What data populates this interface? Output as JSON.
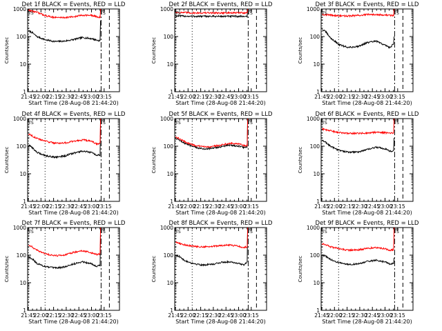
{
  "figure": {
    "colors": {
      "background": "#ffffff",
      "axes": "#000000",
      "events": "#000000",
      "lld": "#ff0000"
    }
  },
  "chart_data": [
    {
      "type": "line",
      "title": "Det 1f BLACK = Events, RED = LLD",
      "xlabel": "Start Time (28-Aug-08 21:44:20)",
      "ylabel": "Counts/sec",
      "xlim": [
        0,
        100
      ],
      "ylim": [
        1,
        1000
      ],
      "yscale": "log",
      "x_tick_labels": [
        "21:45",
        "22:00",
        "22:15",
        "22:30",
        "22:45",
        "23:00",
        "23:15"
      ],
      "y_tick_labels": [
        "1",
        "10",
        "100",
        "1000"
      ],
      "ts_marker": "TS",
      "vlines": [
        {
          "x": 1,
          "style": "dotted"
        },
        {
          "x": 19,
          "style": "dotted"
        },
        {
          "x": 80,
          "style": "dash-dot"
        },
        {
          "x": 89,
          "style": "dashed"
        }
      ],
      "series": [
        {
          "name": "Events",
          "color": "#000000",
          "x": [
            1,
            5,
            10,
            20,
            30,
            40,
            50,
            60,
            70,
            75,
            79
          ],
          "y": [
            160,
            140,
            100,
            75,
            66,
            68,
            78,
            92,
            84,
            74,
            70
          ],
          "end_y": 380
        },
        {
          "name": "LLD",
          "color": "#ff0000",
          "x": [
            1,
            10,
            20,
            30,
            40,
            50,
            60,
            70,
            79
          ],
          "y": [
            900,
            760,
            560,
            490,
            490,
            520,
            600,
            580,
            490
          ],
          "end_y": 1000
        }
      ]
    },
    {
      "type": "line",
      "title": "Det 2f BLACK = Events, RED = LLD",
      "xlabel": "Start Time (28-Aug-08 21:44:20)",
      "ylabel": "Counts/sec",
      "xlim": [
        0,
        100
      ],
      "ylim": [
        1,
        1000
      ],
      "yscale": "log",
      "x_tick_labels": [
        "21:45",
        "22:00",
        "22:15",
        "22:30",
        "22:45",
        "23:00",
        "23:15"
      ],
      "y_tick_labels": [
        "1",
        "10",
        "100",
        "1000"
      ],
      "ts_marker": "TS",
      "vlines": [
        {
          "x": 1,
          "style": "dotted"
        },
        {
          "x": 19,
          "style": "dotted"
        },
        {
          "x": 80,
          "style": "dash-dot"
        },
        {
          "x": 89,
          "style": "dashed"
        }
      ],
      "series": [
        {
          "name": "Events",
          "color": "#000000",
          "x": [
            1,
            20,
            40,
            60,
            79
          ],
          "y": [
            560,
            540,
            540,
            540,
            540
          ],
          "end_y": 1000
        },
        {
          "name": "LLD",
          "color": "#ff0000",
          "x": [
            1,
            20,
            40,
            60,
            79
          ],
          "y": [
            750,
            720,
            720,
            720,
            730
          ],
          "end_y": 1000
        }
      ]
    },
    {
      "type": "line",
      "title": "Det 3f BLACK = Events, RED = LLD",
      "xlabel": "Start Time (28-Aug-08 21:44:20)",
      "ylabel": "Counts/sec",
      "xlim": [
        0,
        100
      ],
      "ylim": [
        1,
        1000
      ],
      "yscale": "log",
      "x_tick_labels": [
        "21:45",
        "22:00",
        "22:15",
        "22:30",
        "22:45",
        "23:00",
        "23:15"
      ],
      "y_tick_labels": [
        "1",
        "10",
        "100",
        "1000"
      ],
      "ts_marker": "TS",
      "vlines": [
        {
          "x": 1,
          "style": "dotted"
        },
        {
          "x": 19,
          "style": "dotted"
        },
        {
          "x": 80,
          "style": "dash-dot"
        },
        {
          "x": 89,
          "style": "dashed"
        }
      ],
      "series": [
        {
          "name": "Events",
          "color": "#000000",
          "x": [
            1,
            5,
            10,
            20,
            30,
            40,
            50,
            60,
            70,
            75,
            79
          ],
          "y": [
            180,
            150,
            90,
            50,
            40,
            44,
            60,
            68,
            48,
            40,
            55
          ],
          "end_y": 100
        },
        {
          "name": "LLD",
          "color": "#ff0000",
          "x": [
            1,
            10,
            20,
            30,
            40,
            50,
            60,
            70,
            79
          ],
          "y": [
            640,
            600,
            560,
            560,
            580,
            620,
            640,
            600,
            580
          ],
          "end_y": 1000
        }
      ]
    },
    {
      "type": "line",
      "title": "Det 4f BLACK = Events, RED = LLD",
      "xlabel": "Start Time (28-Aug-08 21:44:20)",
      "ylabel": "Counts/sec",
      "xlim": [
        0,
        100
      ],
      "ylim": [
        1,
        1000
      ],
      "yscale": "log",
      "x_tick_labels": [
        "21:45",
        "22:00",
        "22:15",
        "22:30",
        "22:45",
        "23:00",
        "23:15"
      ],
      "y_tick_labels": [
        "1",
        "10",
        "100",
        "1000"
      ],
      "ts_marker": "TS",
      "vlines": [
        {
          "x": 1,
          "style": "dotted"
        },
        {
          "x": 19,
          "style": "dotted"
        },
        {
          "x": 80,
          "style": "dash-dot"
        },
        {
          "x": 89,
          "style": "dashed"
        }
      ],
      "series": [
        {
          "name": "Events",
          "color": "#000000",
          "x": [
            1,
            5,
            10,
            20,
            30,
            40,
            50,
            60,
            70,
            75,
            79
          ],
          "y": [
            110,
            90,
            60,
            45,
            40,
            44,
            56,
            66,
            58,
            46,
            48
          ],
          "end_y": 700
        },
        {
          "name": "LLD",
          "color": "#ff0000",
          "x": [
            1,
            5,
            10,
            20,
            30,
            40,
            50,
            60,
            70,
            75,
            79
          ],
          "y": [
            280,
            240,
            190,
            150,
            130,
            130,
            150,
            170,
            150,
            120,
            130
          ],
          "end_y": 1000
        }
      ]
    },
    {
      "type": "line",
      "title": "Det 5f BLACK = Events, RED = LLD",
      "xlabel": "Start Time (28-Aug-08 21:44:20)",
      "ylabel": "Counts/sec",
      "xlim": [
        0,
        100
      ],
      "ylim": [
        1,
        1000
      ],
      "yscale": "log",
      "x_tick_labels": [
        "21:45",
        "22:00",
        "22:15",
        "22:30",
        "22:45",
        "23:00",
        "23:15"
      ],
      "y_tick_labels": [
        "1",
        "10",
        "100",
        "1000"
      ],
      "ts_marker": "TS",
      "vlines": [
        {
          "x": 1,
          "style": "dotted"
        },
        {
          "x": 19,
          "style": "dotted"
        },
        {
          "x": 80,
          "style": "dash-dot"
        },
        {
          "x": 89,
          "style": "dashed"
        }
      ],
      "series": [
        {
          "name": "Events",
          "color": "#000000",
          "x": [
            1,
            5,
            10,
            20,
            30,
            40,
            50,
            60,
            70,
            75,
            79
          ],
          "y": [
            190,
            170,
            130,
            95,
            80,
            82,
            95,
            110,
            100,
            90,
            95
          ],
          "end_y": 1000
        },
        {
          "name": "LLD",
          "color": "#ff0000",
          "x": [
            1,
            5,
            10,
            20,
            30,
            40,
            50,
            60,
            70,
            75,
            79
          ],
          "y": [
            210,
            190,
            150,
            110,
            95,
            97,
            110,
            130,
            120,
            105,
            110
          ],
          "end_y": 1000
        }
      ]
    },
    {
      "type": "line",
      "title": "Det 6f BLACK = Events, RED = LLD",
      "xlabel": "Start Time (28-Aug-08 21:44:20)",
      "ylabel": "Counts/sec",
      "xlim": [
        0,
        100
      ],
      "ylim": [
        1,
        1000
      ],
      "yscale": "log",
      "x_tick_labels": [
        "21:45",
        "22:00",
        "22:15",
        "22:30",
        "22:45",
        "23:00",
        "23:15"
      ],
      "y_tick_labels": [
        "1",
        "10",
        "100",
        "1000"
      ],
      "ts_marker": "TS",
      "vlines": [
        {
          "x": 1,
          "style": "dotted"
        },
        {
          "x": 19,
          "style": "dotted"
        },
        {
          "x": 80,
          "style": "dash-dot"
        },
        {
          "x": 89,
          "style": "dashed"
        }
      ],
      "series": [
        {
          "name": "Events",
          "color": "#000000",
          "x": [
            1,
            5,
            10,
            20,
            30,
            40,
            50,
            60,
            70,
            75,
            79
          ],
          "y": [
            160,
            140,
            100,
            70,
            60,
            62,
            75,
            92,
            80,
            66,
            65
          ],
          "end_y": 200
        },
        {
          "name": "LLD",
          "color": "#ff0000",
          "x": [
            1,
            10,
            20,
            30,
            40,
            50,
            60,
            70,
            79
          ],
          "y": [
            420,
            360,
            310,
            290,
            290,
            300,
            320,
            310,
            300
          ],
          "end_y": 1000
        }
      ]
    },
    {
      "type": "line",
      "title": "Det 7f BLACK = Events, RED = LLD",
      "xlabel": "Start Time (28-Aug-08 21:44:20)",
      "ylabel": "Counts/sec",
      "xlim": [
        0,
        100
      ],
      "ylim": [
        1,
        1000
      ],
      "yscale": "log",
      "x_tick_labels": [
        "21:45",
        "22:00",
        "22:15",
        "22:30",
        "22:45",
        "23:00",
        "23:15"
      ],
      "y_tick_labels": [
        "1",
        "10",
        "100",
        "1000"
      ],
      "ts_marker": "TS",
      "vlines": [
        {
          "x": 1,
          "style": "dotted"
        },
        {
          "x": 19,
          "style": "dotted"
        },
        {
          "x": 80,
          "style": "dash-dot"
        },
        {
          "x": 89,
          "style": "dashed"
        }
      ],
      "series": [
        {
          "name": "Events",
          "color": "#000000",
          "x": [
            1,
            5,
            10,
            20,
            30,
            40,
            50,
            60,
            70,
            75,
            79
          ],
          "y": [
            85,
            75,
            50,
            38,
            34,
            37,
            48,
            58,
            48,
            40,
            42
          ],
          "end_y": 500
        },
        {
          "name": "LLD",
          "color": "#ff0000",
          "x": [
            1,
            5,
            10,
            20,
            30,
            40,
            50,
            60,
            70,
            75,
            79
          ],
          "y": [
            230,
            200,
            150,
            110,
            95,
            100,
            125,
            145,
            120,
            105,
            110
          ],
          "end_y": 1000
        }
      ]
    },
    {
      "type": "line",
      "title": "Det 8f BLACK = Events, RED = LLD",
      "xlabel": "Start Time (28-Aug-08 21:44:20)",
      "ylabel": "Counts/sec",
      "xlim": [
        0,
        100
      ],
      "ylim": [
        1,
        1000
      ],
      "yscale": "log",
      "x_tick_labels": [
        "21:45",
        "22:00",
        "22:15",
        "22:30",
        "22:45",
        "23:00",
        "23:15"
      ],
      "y_tick_labels": [
        "1",
        "10",
        "100",
        "1000"
      ],
      "ts_marker": "TS",
      "vlines": [
        {
          "x": 1,
          "style": "dotted"
        },
        {
          "x": 19,
          "style": "dotted"
        },
        {
          "x": 80,
          "style": "dash-dot"
        },
        {
          "x": 89,
          "style": "dashed"
        }
      ],
      "series": [
        {
          "name": "Events",
          "color": "#000000",
          "x": [
            1,
            5,
            10,
            20,
            30,
            40,
            50,
            60,
            70,
            75,
            79
          ],
          "y": [
            100,
            90,
            65,
            50,
            44,
            46,
            54,
            58,
            50,
            44,
            55
          ],
          "end_y": 1000
        },
        {
          "name": "LLD",
          "color": "#ff0000",
          "x": [
            1,
            5,
            10,
            20,
            30,
            40,
            50,
            60,
            70,
            75,
            79
          ],
          "y": [
            300,
            270,
            240,
            210,
            200,
            205,
            225,
            230,
            210,
            190,
            200
          ],
          "end_y": 1000
        }
      ]
    },
    {
      "type": "line",
      "title": "Det 9f BLACK = Events, RED = LLD",
      "xlabel": "Start Time (28-Aug-08 21:44:20)",
      "ylabel": "Counts/sec",
      "xlim": [
        0,
        100
      ],
      "ylim": [
        1,
        1000
      ],
      "yscale": "log",
      "x_tick_labels": [
        "21:45",
        "22:00",
        "22:15",
        "22:30",
        "22:45",
        "23:00",
        "23:15"
      ],
      "y_tick_labels": [
        "1",
        "10",
        "100",
        "1000"
      ],
      "ts_marker": "TS",
      "vlines": [
        {
          "x": 1,
          "style": "dotted"
        },
        {
          "x": 19,
          "style": "dotted"
        },
        {
          "x": 80,
          "style": "dash-dot"
        },
        {
          "x": 89,
          "style": "dashed"
        }
      ],
      "series": [
        {
          "name": "Events",
          "color": "#000000",
          "x": [
            1,
            5,
            10,
            20,
            30,
            40,
            50,
            60,
            70,
            75,
            79
          ],
          "y": [
            100,
            92,
            70,
            52,
            46,
            48,
            58,
            66,
            56,
            48,
            50
          ],
          "end_y": 80
        },
        {
          "name": "LLD",
          "color": "#ff0000",
          "x": [
            1,
            5,
            10,
            20,
            30,
            40,
            50,
            60,
            70,
            75,
            79
          ],
          "y": [
            260,
            240,
            200,
            170,
            150,
            155,
            175,
            190,
            170,
            150,
            160
          ],
          "end_y": 1000
        }
      ]
    }
  ]
}
